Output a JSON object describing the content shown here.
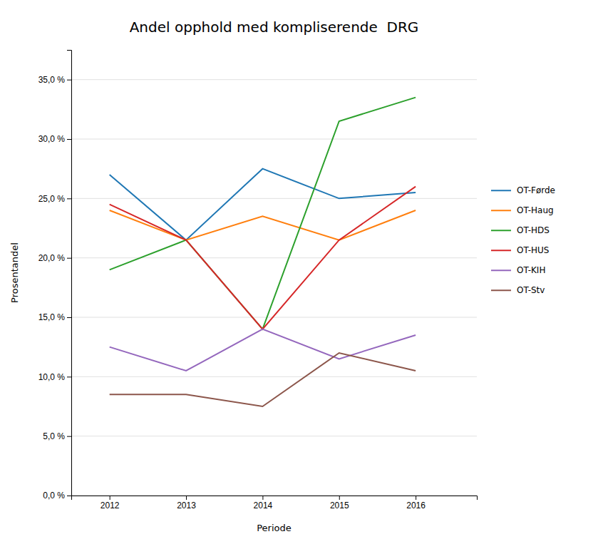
{
  "chart_data": {
    "type": "line",
    "title": "Andel opphold med kompliserende  DRG",
    "xlabel": "Periode",
    "ylabel": "Prosentandel",
    "x": [
      2012,
      2013,
      2014,
      2015,
      2016
    ],
    "series": [
      {
        "name": "OT-Førde",
        "values": [
          27.0,
          21.5,
          27.5,
          25.0,
          25.5
        ]
      },
      {
        "name": "OT-Haug",
        "values": [
          24.0,
          21.5,
          23.5,
          21.5,
          24.0
        ]
      },
      {
        "name": "OT-HDS",
        "values": [
          19.0,
          21.5,
          14.0,
          31.5,
          33.5
        ]
      },
      {
        "name": "OT-HUS",
        "values": [
          24.5,
          21.5,
          14.0,
          21.5,
          26.0
        ]
      },
      {
        "name": "OT-KIH",
        "values": [
          12.5,
          10.5,
          14.0,
          11.5,
          13.5
        ]
      },
      {
        "name": "OT-Stv",
        "values": [
          8.5,
          8.5,
          7.5,
          12.0,
          10.5
        ]
      }
    ],
    "xlim": [
      2011.5,
      2016.8
    ],
    "xticks": [
      2012,
      2013,
      2014,
      2015,
      2016
    ],
    "ylim": [
      0.0,
      37.5
    ],
    "yticks": [
      {
        "value": 0.0,
        "label": "0,0 %"
      },
      {
        "value": 5.0,
        "label": "5,0 %"
      },
      {
        "value": 10.0,
        "label": "10,0 %"
      },
      {
        "value": 15.0,
        "label": "15,0 %"
      },
      {
        "value": 20.0,
        "label": "20,0 %"
      },
      {
        "value": 25.0,
        "label": "25,0 %"
      },
      {
        "value": 30.0,
        "label": "30,0 %"
      },
      {
        "value": 35.0,
        "label": "35,0 %"
      }
    ],
    "grid": true,
    "legend": "right"
  }
}
